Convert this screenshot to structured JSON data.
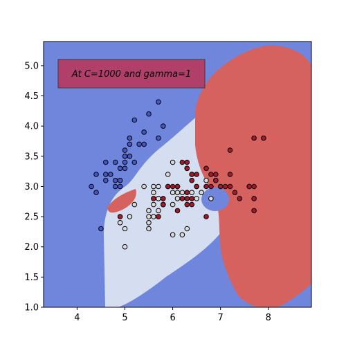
{
  "chart_data": {
    "type": "scatter",
    "title": "",
    "xlabel": "",
    "ylabel": "",
    "xlim": [
      3.3,
      8.9
    ],
    "ylim": [
      1.0,
      5.4
    ],
    "x_ticks": [
      4,
      5,
      6,
      7,
      8
    ],
    "y_ticks": [
      1.0,
      1.5,
      2.0,
      2.5,
      3.0,
      3.5,
      4.0,
      4.5,
      5.0
    ],
    "grid": false,
    "background_region_color": "#6f86dc",
    "annotation": {
      "text": "At C=1000 and gamma=1",
      "box_color": "#b0406a"
    },
    "decision_regions": [
      {
        "class": "class-1",
        "color": "#d5ddf0"
      },
      {
        "class": "class-2",
        "color": "#d66260"
      }
    ],
    "series": [
      {
        "class": "class-0",
        "color": "#4358c8",
        "points": [
          [
            5.1,
            3.5
          ],
          [
            4.9,
            3.0
          ],
          [
            4.7,
            3.2
          ],
          [
            4.6,
            3.1
          ],
          [
            5.0,
            3.6
          ],
          [
            5.4,
            3.9
          ],
          [
            4.6,
            3.4
          ],
          [
            5.0,
            3.4
          ],
          [
            4.4,
            2.9
          ],
          [
            4.9,
            3.1
          ],
          [
            5.4,
            3.7
          ],
          [
            4.8,
            3.4
          ],
          [
            4.8,
            3.0
          ],
          [
            4.3,
            3.0
          ],
          [
            5.8,
            4.0
          ],
          [
            5.7,
            4.4
          ],
          [
            5.1,
            3.8
          ],
          [
            5.7,
            3.8
          ],
          [
            5.2,
            4.1
          ],
          [
            5.5,
            4.2
          ],
          [
            4.4,
            3.2
          ],
          [
            5.0,
            3.5
          ],
          [
            4.5,
            2.3
          ],
          [
            4.8,
            3.1
          ],
          [
            5.3,
            3.7
          ],
          [
            4.6,
            3.2
          ],
          [
            5.1,
            3.7
          ],
          [
            5.2,
            3.4
          ],
          [
            4.9,
            3.3
          ],
          [
            5.0,
            3.3
          ]
        ]
      },
      {
        "class": "class-1",
        "color": "#d9d9d9",
        "points": [
          [
            6.4,
            3.2
          ],
          [
            6.9,
            3.1
          ],
          [
            5.5,
            2.3
          ],
          [
            6.5,
            2.8
          ],
          [
            5.7,
            2.8
          ],
          [
            6.3,
            3.3
          ],
          [
            4.9,
            2.4
          ],
          [
            6.6,
            2.9
          ],
          [
            5.2,
            2.7
          ],
          [
            5.0,
            2.0
          ],
          [
            5.9,
            3.0
          ],
          [
            6.0,
            2.2
          ],
          [
            6.1,
            2.9
          ],
          [
            5.6,
            2.9
          ],
          [
            6.7,
            3.1
          ],
          [
            5.6,
            3.0
          ],
          [
            5.8,
            2.7
          ],
          [
            6.2,
            2.2
          ],
          [
            5.6,
            2.5
          ],
          [
            5.9,
            3.2
          ],
          [
            6.1,
            2.8
          ],
          [
            6.4,
            2.9
          ],
          [
            6.8,
            2.8
          ],
          [
            6.0,
            2.9
          ],
          [
            5.7,
            2.6
          ],
          [
            5.5,
            2.4
          ],
          [
            5.8,
            2.7
          ],
          [
            6.0,
            2.7
          ],
          [
            5.4,
            3.0
          ],
          [
            6.0,
            3.4
          ],
          [
            6.3,
            2.3
          ],
          [
            5.5,
            2.5
          ],
          [
            5.5,
            2.6
          ],
          [
            6.1,
            3.0
          ],
          [
            5.0,
            2.3
          ],
          [
            5.6,
            2.7
          ],
          [
            5.7,
            3.0
          ],
          [
            6.2,
            2.9
          ],
          [
            5.1,
            2.5
          ],
          [
            5.7,
            2.8
          ]
        ]
      },
      {
        "class": "class-2",
        "color": "#a3182a",
        "points": [
          [
            6.3,
            3.3
          ],
          [
            5.8,
            2.7
          ],
          [
            7.1,
            3.0
          ],
          [
            6.3,
            2.9
          ],
          [
            6.5,
            3.0
          ],
          [
            7.6,
            3.0
          ],
          [
            4.9,
            2.5
          ],
          [
            7.3,
            2.9
          ],
          [
            6.7,
            2.5
          ],
          [
            7.2,
            3.6
          ],
          [
            6.5,
            3.2
          ],
          [
            6.4,
            2.7
          ],
          [
            6.8,
            3.0
          ],
          [
            5.7,
            2.5
          ],
          [
            5.8,
            2.8
          ],
          [
            6.4,
            3.2
          ],
          [
            7.7,
            3.8
          ],
          [
            7.7,
            2.6
          ],
          [
            6.0,
            3.0
          ],
          [
            6.9,
            3.2
          ],
          [
            5.6,
            2.8
          ],
          [
            7.7,
            2.8
          ],
          [
            6.3,
            2.7
          ],
          [
            6.7,
            3.3
          ],
          [
            7.2,
            3.2
          ],
          [
            6.2,
            2.8
          ],
          [
            6.1,
            3.0
          ],
          [
            7.2,
            3.0
          ],
          [
            7.4,
            2.8
          ],
          [
            7.9,
            3.8
          ],
          [
            6.3,
            2.8
          ],
          [
            6.1,
            2.6
          ],
          [
            7.7,
            3.0
          ],
          [
            6.3,
            3.4
          ],
          [
            6.4,
            3.1
          ],
          [
            6.9,
            3.1
          ],
          [
            5.8,
            2.7
          ],
          [
            6.8,
            3.2
          ],
          [
            6.7,
            3.0
          ],
          [
            6.5,
            3.0
          ],
          [
            6.2,
            3.4
          ],
          [
            5.9,
            3.0
          ],
          [
            7.0,
            3.0
          ],
          [
            6.4,
            2.8
          ],
          [
            7.6,
            3.0
          ]
        ]
      }
    ]
  }
}
